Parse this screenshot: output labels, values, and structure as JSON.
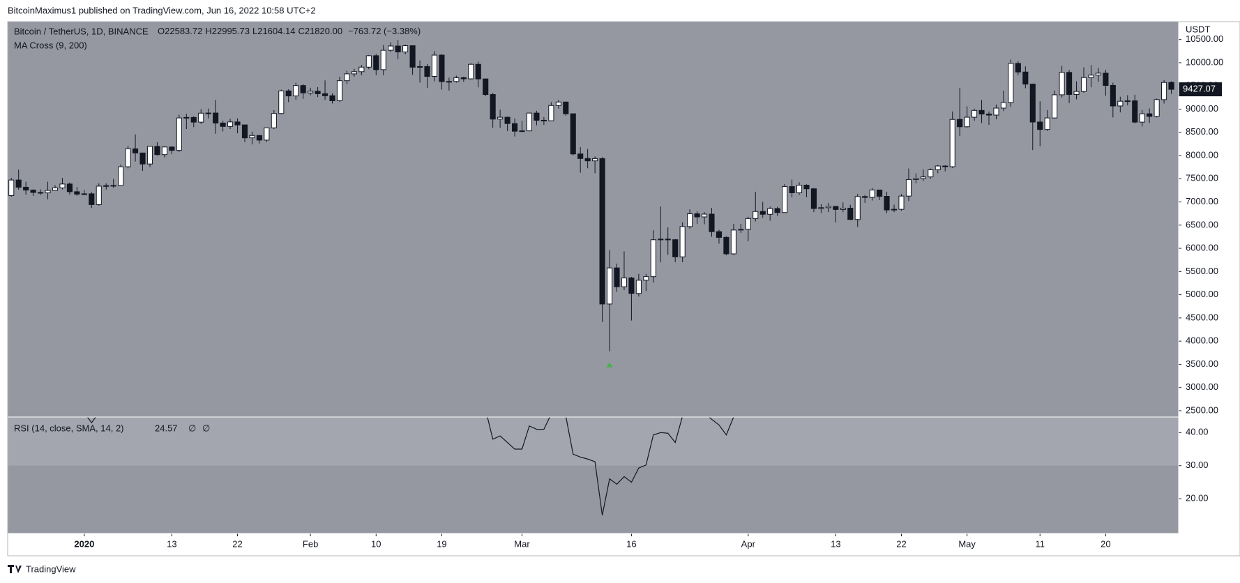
{
  "chart_data": {
    "type": "candlestick",
    "published": "BitcoinMaximus1 published on TradingView.com, Jun 16, 2022 10:58 UTC+2",
    "symbol": "Bitcoin / TetherUS, 1D, BINANCE",
    "legend_values": {
      "O": "22583.72",
      "H": "22995.73",
      "L": "21604.14",
      "C": "21820.00",
      "change": "−763.72 (−3.38%)"
    },
    "indicator": "MA Cross (9, 200)",
    "currency": "USDT",
    "brand": "TradingView",
    "up_color": "#ffffff",
    "down_color": "#131722",
    "background": "#9598a1",
    "grid": false,
    "open": [
      7136,
      7472,
      7317,
      7255,
      7204,
      7195,
      7247,
      7303,
      7386,
      7220,
      7168,
      7175,
      6942,
      7340,
      7350,
      7355,
      7758,
      8145,
      8055,
      7818,
      8197,
      8020,
      8184,
      8111,
      8810,
      8821,
      8720,
      8913,
      8916,
      8700,
      8627,
      8724,
      8660,
      8381,
      8432,
      8332,
      8597,
      8906,
      9393,
      9284,
      9508,
      9350,
      9385,
      9332,
      9289,
      9181,
      9613,
      9760,
      9807,
      9905,
      10151,
      9851,
      10268,
      10360,
      10233,
      10367,
      9904,
      9917,
      9706,
      10164,
      9593,
      9596,
      9677,
      9653,
      9966,
      9651,
      9315,
      8785,
      8825,
      8689,
      8524,
      8532,
      8915,
      8760,
      8750,
      9078,
      9153,
      8900,
      8034,
      7936,
      7885,
      7934,
      4800,
      5578,
      5172,
      5361,
      5028,
      5312,
      5390,
      6185,
      6198,
      6186,
      5816,
      6469,
      6744,
      6677,
      6737,
      6359,
      6236,
      5881,
      6394,
      6410,
      6642,
      6794,
      6734,
      6857,
      6772,
      7330,
      7197,
      7361,
      7283,
      6858,
      6876,
      6903,
      6837,
      6866,
      6621,
      7116,
      7097,
      7257,
      7121,
      6827,
      6841,
      7126,
      7483,
      7505,
      7539,
      7693,
      7774,
      7759,
      8778,
      8620,
      8826,
      8972,
      8894,
      8872,
      9022,
      9143,
      9986,
      9800,
      9539,
      8722,
      8561,
      8810,
      9309,
      9791,
      9316,
      9381,
      9680,
      9733,
      9775,
      9511,
      9068,
      9170,
      9179,
      8720,
      8900,
      8844,
      9205,
      9575
    ],
    "high": [
      7518,
      7695,
      7436,
      7272,
      7270,
      7435,
      7360,
      7518,
      7420,
      7322,
      7255,
      7212,
      7400,
      7400,
      7495,
      7808,
      8207,
      8455,
      8055,
      8199,
      8286,
      8200,
      8200,
      8880,
      8900,
      8846,
      9000,
      9012,
      9200,
      8750,
      8791,
      8800,
      8660,
      8515,
      8440,
      8600,
      8978,
      9420,
      9427,
      9570,
      9540,
      9460,
      9475,
      9620,
      9340,
      9700,
      9830,
      9870,
      9950,
      10166,
      10190,
      10380,
      10440,
      10490,
      10390,
      10375,
      10050,
      9972,
      10250,
      10180,
      9680,
      9720,
      9700,
      9990,
      10025,
      9660,
      9350,
      8990,
      8840,
      8800,
      8750,
      8920,
      8965,
      8830,
      9150,
      9195,
      9160,
      8900,
      8180,
      8140,
      7980,
      7966,
      5965,
      5670,
      5935,
      5385,
      5450,
      5450,
      6390,
      6900,
      6450,
      6200,
      6560,
      6840,
      6800,
      6780,
      6870,
      6400,
      6260,
      6525,
      6530,
      6680,
      7220,
      7000,
      6900,
      6894,
      7385,
      7480,
      7425,
      7380,
      7300,
      6950,
      6980,
      6914,
      6990,
      6939,
      7170,
      7150,
      7300,
      7260,
      7220,
      6940,
      7170,
      7720,
      7615,
      7700,
      7720,
      7800,
      7790,
      8950,
      9460,
      9060,
      9010,
      9200,
      8950,
      9100,
      9400,
      10070,
      10030,
      9920,
      9550,
      9170,
      8980,
      9400,
      9930,
      9845,
      9600,
      9900,
      9950,
      9890,
      9845,
      9570,
      9267,
      9300,
      9310,
      8980,
      9015,
      9230,
      9625,
      9600
    ],
    "low": [
      7110,
      7265,
      7157,
      7128,
      7150,
      7057,
      7240,
      7270,
      7160,
      7130,
      7150,
      6871,
      6915,
      7268,
      7305,
      7346,
      7723,
      7870,
      7670,
      7750,
      8000,
      7960,
      8030,
      8080,
      8570,
      8612,
      8680,
      8800,
      8470,
      8520,
      8570,
      8480,
      8290,
      8240,
      8260,
      8290,
      8570,
      8890,
      9150,
      9200,
      9220,
      9300,
      9260,
      9200,
      9120,
      9150,
      9535,
      9700,
      9730,
      9860,
      9730,
      9730,
      10230,
      10080,
      10180,
      9740,
      9570,
      9460,
      9600,
      9420,
      9400,
      9570,
      9590,
      9640,
      9470,
      9280,
      8600,
      8600,
      8525,
      8410,
      8500,
      8520,
      8650,
      8660,
      8745,
      9012,
      8860,
      8000,
      7630,
      7725,
      7620,
      4410,
      3782,
      5060,
      5100,
      4444,
      4960,
      5080,
      5260,
      5700,
      5860,
      5700,
      5700,
      6425,
      6530,
      6520,
      6250,
      6100,
      5850,
      5860,
      6330,
      6150,
      6580,
      6660,
      6595,
      6700,
      6770,
      7100,
      7150,
      7100,
      6780,
      6760,
      6780,
      6555,
      6780,
      6610,
      6460,
      6980,
      7030,
      7040,
      6760,
      6780,
      6810,
      7020,
      7400,
      7450,
      7500,
      7620,
      7660,
      7730,
      8420,
      8600,
      8750,
      8700,
      8660,
      8780,
      8960,
      9050,
      9730,
      9450,
      8117,
      8200,
      8530,
      8800,
      9250,
      9130,
      9210,
      9350,
      9470,
      9590,
      9290,
      8820,
      8930,
      9080,
      8690,
      8630,
      8700,
      8820,
      9120,
      9330
    ],
    "close": [
      7472,
      7317,
      7255,
      7204,
      7195,
      7247,
      7303,
      7386,
      7220,
      7168,
      7175,
      6942,
      7340,
      7350,
      7355,
      7758,
      8145,
      8055,
      7818,
      8197,
      8020,
      8184,
      8111,
      8810,
      8821,
      8720,
      8913,
      8916,
      8700,
      8627,
      8724,
      8660,
      8381,
      8432,
      8332,
      8597,
      8906,
      9393,
      9284,
      9508,
      9350,
      9385,
      9332,
      9289,
      9181,
      9613,
      9760,
      9807,
      9905,
      10151,
      9851,
      10268,
      10360,
      10233,
      10367,
      9904,
      9917,
      9706,
      10164,
      9593,
      9596,
      9677,
      9653,
      9966,
      9651,
      9315,
      8785,
      8825,
      8689,
      8524,
      8532,
      8915,
      8760,
      8750,
      9078,
      9153,
      8900,
      8034,
      7936,
      7885,
      7934,
      4800,
      5578,
      5172,
      5361,
      5028,
      5312,
      5390,
      6185,
      6198,
      6186,
      5816,
      6469,
      6744,
      6677,
      6737,
      6359,
      6236,
      5881,
      6394,
      6410,
      6642,
      6794,
      6734,
      6857,
      6772,
      7330,
      7197,
      7361,
      7283,
      6858,
      6876,
      6903,
      6837,
      6866,
      6621,
      7116,
      7097,
      7257,
      7121,
      6827,
      6841,
      7126,
      7483,
      7505,
      7539,
      7693,
      7774,
      7759,
      8778,
      8620,
      8826,
      8972,
      8894,
      8872,
      9022,
      9143,
      9986,
      9800,
      9539,
      8722,
      8561,
      8810,
      9309,
      9791,
      9316,
      9381,
      9680,
      9733,
      9775,
      9511,
      9068,
      9170,
      9179,
      8720,
      8900,
      8844,
      9205,
      9575,
      9427.07
    ],
    "xlim": [
      -0.5,
      160
    ],
    "xticks": [
      {
        "value": 10,
        "label": "2020"
      },
      {
        "value": 22,
        "label": "13"
      },
      {
        "value": 31,
        "label": "22"
      },
      {
        "value": 41,
        "label": "Feb"
      },
      {
        "value": 50,
        "label": "10"
      },
      {
        "value": 59,
        "label": "19"
      },
      {
        "value": 70,
        "label": "Mar"
      },
      {
        "value": 85,
        "label": "16"
      },
      {
        "value": 101,
        "label": "Apr"
      },
      {
        "value": 113,
        "label": "13"
      },
      {
        "value": 122,
        "label": "22"
      },
      {
        "value": 131,
        "label": "May"
      },
      {
        "value": 141,
        "label": "11"
      },
      {
        "value": 150,
        "label": "20"
      }
    ],
    "ylim": [
      2364,
      10886
    ],
    "yticks": [
      {
        "value": 2500,
        "label": "2500.00"
      },
      {
        "value": 3000,
        "label": "3000.00"
      },
      {
        "value": 3500,
        "label": "3500.00"
      },
      {
        "value": 4000,
        "label": "4000.00"
      },
      {
        "value": 4500,
        "label": "4500.00"
      },
      {
        "value": 5000,
        "label": "5000.00"
      },
      {
        "value": 5500,
        "label": "5500.00"
      },
      {
        "value": 6000,
        "label": "6000.00"
      },
      {
        "value": 6500,
        "label": "6500.00"
      },
      {
        "value": 7000,
        "label": "7000.00"
      },
      {
        "value": 7500,
        "label": "7500.00"
      },
      {
        "value": 8000,
        "label": "8000.00"
      },
      {
        "value": 8500,
        "label": "8500.00"
      },
      {
        "value": 9000,
        "label": "9000.00"
      },
      {
        "value": 9500,
        "label": "9500.00"
      },
      {
        "value": 10000,
        "label": "10000.00"
      },
      {
        "value": 10500,
        "label": "10500.00"
      }
    ],
    "markers": [
      {
        "x": 82,
        "y": 3480,
        "color": "#4caf50"
      }
    ],
    "rsi": {
      "title": "RSI (14, close, SMA, 14, 2)",
      "current": "24.57",
      "extra": [
        "∅",
        "∅"
      ],
      "color": "#131722",
      "band": [
        30,
        70
      ],
      "band_color": "#a3a6ae",
      "x": [
        10,
        11,
        12,
        64,
        65,
        66,
        67,
        68,
        69,
        70,
        71,
        72,
        73,
        74,
        75,
        76,
        77,
        78,
        79,
        80,
        81,
        82,
        83,
        84,
        85,
        86,
        87,
        88,
        89,
        90,
        91,
        92,
        93,
        94,
        95,
        96,
        97,
        98,
        99,
        100
      ],
      "values": [
        46,
        43,
        46,
        48,
        47,
        38,
        39,
        37,
        35,
        35,
        42,
        41,
        41,
        45.6,
        47,
        45,
        33.5,
        32.6,
        32,
        31.2,
        15,
        26,
        24.4,
        26.7,
        25,
        29.3,
        30.2,
        39.3,
        40,
        39.8,
        37,
        45,
        47,
        46.5,
        46,
        44,
        42.3,
        39.3,
        44.7,
        48
      ],
      "ylim": [
        9.5,
        44.7
      ],
      "yticks": [
        {
          "value": 20,
          "label": "20.00"
        },
        {
          "value": 30,
          "label": "30.00"
        },
        {
          "value": 40,
          "label": "40.00"
        }
      ]
    }
  }
}
